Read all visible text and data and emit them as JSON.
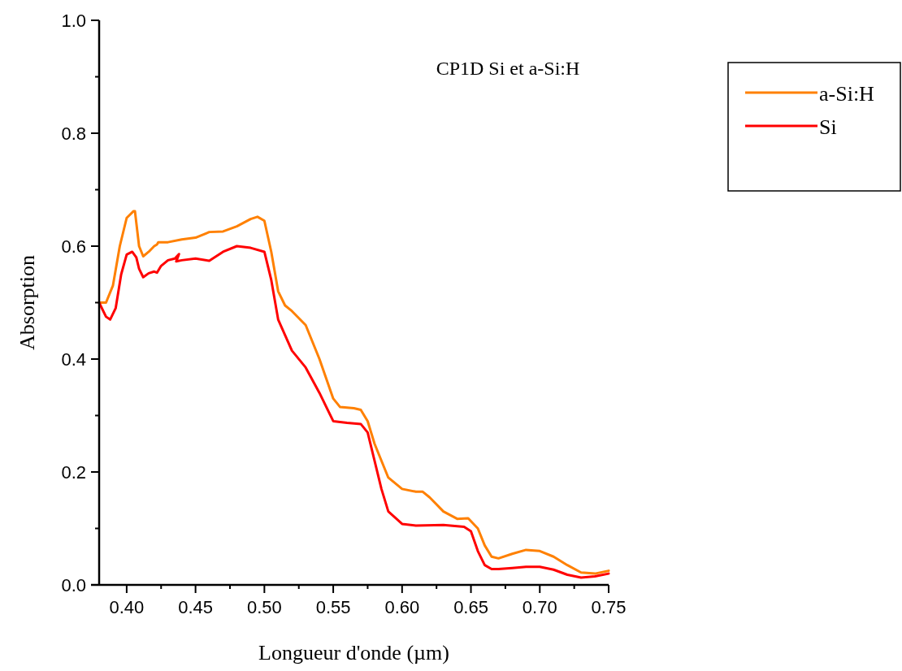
{
  "chart_data": {
    "type": "line",
    "title": "CP1D Si et a-Si:H",
    "xlabel": "Longueur d'onde (µm)",
    "ylabel": "Absorption",
    "xlim": [
      0.38,
      0.75
    ],
    "ylim": [
      0,
      1
    ],
    "xticks": [
      {
        "value": 0.4,
        "label": "0.40"
      },
      {
        "value": 0.425,
        "label": null
      },
      {
        "value": 0.45,
        "label": "0.45"
      },
      {
        "value": 0.475,
        "label": null
      },
      {
        "value": 0.5,
        "label": "0.50"
      },
      {
        "value": 0.525,
        "label": null
      },
      {
        "value": 0.55,
        "label": "0.55"
      },
      {
        "value": 0.575,
        "label": null
      },
      {
        "value": 0.6,
        "label": "0.60"
      },
      {
        "value": 0.625,
        "label": null
      },
      {
        "value": 0.65,
        "label": "0.65"
      },
      {
        "value": 0.675,
        "label": null
      },
      {
        "value": 0.7,
        "label": "0.70"
      },
      {
        "value": 0.725,
        "label": null
      },
      {
        "value": 0.75,
        "label": "0.75"
      }
    ],
    "yticks": [
      {
        "value": 0,
        "label": "0.0"
      },
      {
        "value": 0.1,
        "label": null
      },
      {
        "value": 0.2,
        "label": "0.2"
      },
      {
        "value": 0.3,
        "label": null
      },
      {
        "value": 0.4,
        "label": "0.4"
      },
      {
        "value": 0.5,
        "label": null
      },
      {
        "value": 0.6,
        "label": "0.6"
      },
      {
        "value": 0.7,
        "label": null
      },
      {
        "value": 0.8,
        "label": "0.8"
      },
      {
        "value": 0.9,
        "label": null
      },
      {
        "value": 1,
        "label": "1.0"
      }
    ],
    "grid": false,
    "legend": "top right",
    "marker": "none",
    "line_style": "solid",
    "series": [
      {
        "name": "a-Si:H",
        "color": "#ff8000",
        "x": [
          0.38,
          0.385,
          0.39,
          0.395,
          0.4,
          0.405,
          0.406,
          0.409,
          0.412,
          0.416,
          0.42,
          0.422,
          0.423,
          0.43,
          0.44,
          0.45,
          0.46,
          0.47,
          0.48,
          0.49,
          0.495,
          0.5,
          0.505,
          0.51,
          0.515,
          0.52,
          0.53,
          0.54,
          0.55,
          0.555,
          0.565,
          0.57,
          0.575,
          0.58,
          0.59,
          0.6,
          0.61,
          0.615,
          0.62,
          0.63,
          0.64,
          0.648,
          0.655,
          0.66,
          0.665,
          0.67,
          0.68,
          0.69,
          0.7,
          0.71,
          0.72,
          0.73,
          0.74,
          0.75
        ],
        "values": [
          0.5,
          0.5,
          0.53,
          0.6,
          0.65,
          0.662,
          0.662,
          0.6,
          0.582,
          0.59,
          0.6,
          0.603,
          0.607,
          0.607,
          0.612,
          0.615,
          0.625,
          0.626,
          0.635,
          0.648,
          0.652,
          0.645,
          0.59,
          0.52,
          0.495,
          0.485,
          0.46,
          0.4,
          0.33,
          0.315,
          0.313,
          0.31,
          0.29,
          0.25,
          0.19,
          0.17,
          0.165,
          0.165,
          0.155,
          0.13,
          0.117,
          0.118,
          0.1,
          0.07,
          0.05,
          0.047,
          0.055,
          0.062,
          0.06,
          0.05,
          0.035,
          0.022,
          0.02,
          0.025
        ]
      },
      {
        "name": "Si",
        "color": "#ff0000",
        "x": [
          0.38,
          0.385,
          0.388,
          0.392,
          0.396,
          0.4,
          0.404,
          0.407,
          0.409,
          0.412,
          0.416,
          0.42,
          0.422,
          0.425,
          0.43,
          0.435,
          0.438,
          0.436,
          0.44,
          0.45,
          0.46,
          0.47,
          0.48,
          0.49,
          0.5,
          0.505,
          0.51,
          0.52,
          0.53,
          0.54,
          0.55,
          0.56,
          0.57,
          0.575,
          0.58,
          0.585,
          0.59,
          0.6,
          0.61,
          0.63,
          0.645,
          0.65,
          0.655,
          0.66,
          0.665,
          0.67,
          0.68,
          0.69,
          0.7,
          0.71,
          0.72,
          0.73,
          0.74,
          0.75
        ],
        "values": [
          0.5,
          0.475,
          0.47,
          0.49,
          0.55,
          0.585,
          0.59,
          0.58,
          0.56,
          0.545,
          0.552,
          0.555,
          0.553,
          0.565,
          0.575,
          0.578,
          0.586,
          0.573,
          0.575,
          0.578,
          0.574,
          0.59,
          0.6,
          0.597,
          0.59,
          0.54,
          0.47,
          0.415,
          0.385,
          0.34,
          0.29,
          0.287,
          0.285,
          0.27,
          0.22,
          0.17,
          0.13,
          0.108,
          0.105,
          0.106,
          0.103,
          0.095,
          0.06,
          0.035,
          0.028,
          0.028,
          0.03,
          0.032,
          0.032,
          0.027,
          0.018,
          0.013,
          0.015,
          0.02
        ]
      }
    ]
  }
}
